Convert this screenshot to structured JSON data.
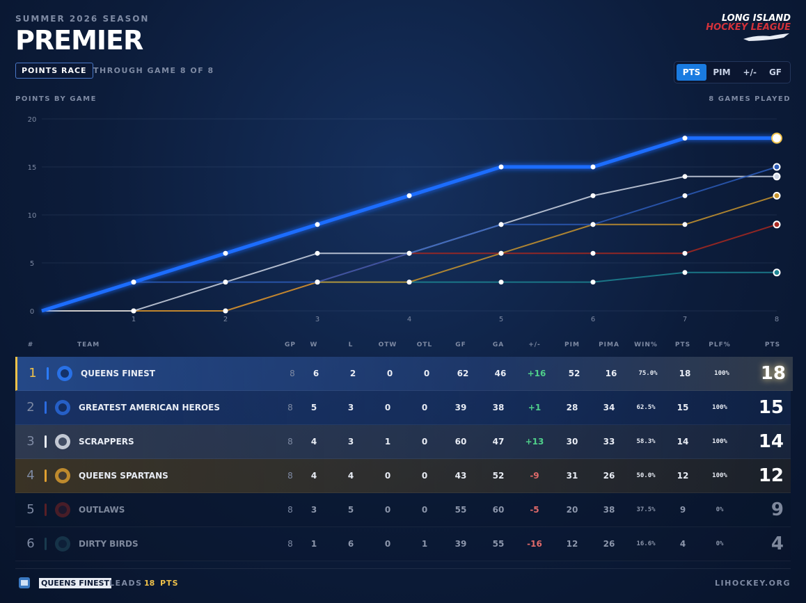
{
  "header": {
    "season": "SUMMER 2026 SEASON",
    "division": "PREMIER",
    "badge": "POINTS RACE",
    "subtitle": "THROUGH GAME 8 OF 8",
    "logo_line1": "LONG ISLAND",
    "logo_line2": "HOCKEY LEAGUE",
    "tabs": [
      "PTS",
      "PIM",
      "+/-",
      "GF"
    ],
    "active_tab": 0
  },
  "chart_header": {
    "left": "POINTS BY GAME",
    "right": "8 GAMES PLAYED"
  },
  "chart_data": {
    "type": "line",
    "x": [
      0,
      1,
      2,
      3,
      4,
      5,
      6,
      7,
      8
    ],
    "xlim": [
      0,
      8
    ],
    "xticks": [
      1,
      2,
      3,
      4,
      5,
      6,
      7,
      8
    ],
    "ylim": [
      0,
      20
    ],
    "yticks": [
      0,
      5,
      10,
      15,
      20
    ],
    "grid": true,
    "series": [
      {
        "color": "#1f6dff",
        "values": [
          0,
          3,
          6,
          9,
          12,
          15,
          15,
          18,
          18
        ]
      },
      {
        "color": "#2d5cb8",
        "values": [
          0,
          3,
          3,
          3,
          6,
          9,
          9,
          12,
          15
        ]
      },
      {
        "color": "#cfd6e4",
        "values": [
          0,
          0,
          3,
          6,
          6,
          9,
          12,
          14,
          14
        ]
      },
      {
        "color": "#c9952e",
        "values": [
          0,
          0,
          0,
          3,
          3,
          6,
          9,
          9,
          12
        ]
      },
      {
        "color": "#a82820",
        "values": [
          0,
          0,
          0,
          3,
          6,
          6,
          6,
          6,
          9
        ]
      },
      {
        "color": "#1d8593",
        "values": [
          0,
          0,
          0,
          3,
          3,
          3,
          3,
          4,
          4
        ]
      }
    ]
  },
  "table": {
    "columns": [
      "#",
      "TEAM",
      "GP",
      "W",
      "L",
      "OTW",
      "OTL",
      "GF",
      "GA",
      "+/-",
      "PIM",
      "PIMA",
      "WIN%",
      "PTS",
      "PLF%",
      "PTS"
    ],
    "rows": [
      [
        "1",
        "QUEENS FINEST",
        "8",
        "6",
        "2",
        "0",
        "0",
        "62",
        "46",
        "+16",
        "52",
        "16",
        "75.0%",
        "18",
        "100%",
        "18"
      ],
      [
        "2",
        "GREATEST AMERICAN HEROES",
        "8",
        "5",
        "3",
        "0",
        "0",
        "39",
        "38",
        "+1",
        "28",
        "34",
        "62.5%",
        "15",
        "100%",
        "15"
      ],
      [
        "3",
        "SCRAPPERS",
        "8",
        "4",
        "3",
        "1",
        "0",
        "60",
        "47",
        "+13",
        "30",
        "33",
        "58.3%",
        "14",
        "100%",
        "14"
      ],
      [
        "4",
        "QUEENS SPARTANS",
        "8",
        "4",
        "4",
        "0",
        "0",
        "43",
        "52",
        "-9",
        "31",
        "26",
        "50.0%",
        "12",
        "100%",
        "12"
      ],
      [
        "5",
        "OUTLAWS",
        "8",
        "3",
        "5",
        "0",
        "0",
        "55",
        "60",
        "-5",
        "20",
        "38",
        "37.5%",
        "9",
        "0%",
        "9"
      ],
      [
        "6",
        "DIRTY BIRDS",
        "8",
        "1",
        "6",
        "0",
        "1",
        "39",
        "55",
        "-16",
        "12",
        "26",
        "16.6%",
        "4",
        "0%",
        "4"
      ]
    ]
  },
  "footer": {
    "team": "QUEENS FINEST",
    "leads": "LEADS",
    "points": "18",
    "unit": "PTS",
    "site": "LIHOCKEY.ORG"
  }
}
